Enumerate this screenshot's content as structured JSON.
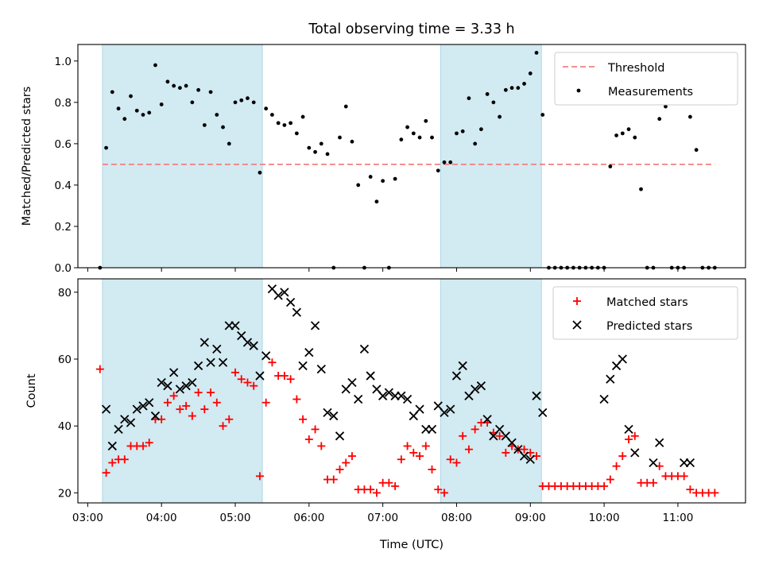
{
  "chart_data": [
    {
      "type": "scatter",
      "title": "Total observing time = 3.33 h",
      "xlabel": "",
      "ylabel": "Matched/Predicted stars",
      "ylim": [
        0,
        1.08
      ],
      "yticks": [
        0.0,
        0.2,
        0.4,
        0.6,
        0.8,
        1.0
      ],
      "ytick_labels": [
        "0.0",
        "0.2",
        "0.4",
        "0.6",
        "0.8",
        "1.0"
      ],
      "threshold": {
        "label": "Threshold",
        "value": 0.5,
        "x_range": [
          "03:12",
          "11:30"
        ],
        "color": "#f28080"
      },
      "legend_position": "top-right",
      "series": [
        {
          "name": "Measurements",
          "color": "#000000",
          "x": [
            "03:10",
            "03:15",
            "03:20",
            "03:25",
            "03:30",
            "03:35",
            "03:40",
            "03:45",
            "03:50",
            "03:55",
            "04:00",
            "04:05",
            "04:10",
            "04:15",
            "04:20",
            "04:25",
            "04:30",
            "04:35",
            "04:40",
            "04:45",
            "04:50",
            "04:55",
            "05:00",
            "05:05",
            "05:10",
            "05:15",
            "05:20",
            "05:25",
            "05:30",
            "05:35",
            "05:40",
            "05:45",
            "05:50",
            "05:55",
            "06:00",
            "06:05",
            "06:10",
            "06:15",
            "06:20",
            "06:25",
            "06:30",
            "06:35",
            "06:40",
            "06:45",
            "06:50",
            "06:55",
            "07:00",
            "07:05",
            "07:10",
            "07:15",
            "07:20",
            "07:25",
            "07:30",
            "07:35",
            "07:40",
            "07:45",
            "07:50",
            "07:55",
            "08:00",
            "08:05",
            "08:10",
            "08:15",
            "08:20",
            "08:25",
            "08:30",
            "08:35",
            "08:40",
            "08:45",
            "08:50",
            "08:55",
            "09:00",
            "09:05",
            "09:10",
            "09:15",
            "09:20",
            "09:25",
            "09:30",
            "09:35",
            "09:40",
            "09:45",
            "09:50",
            "09:55",
            "10:00",
            "10:05",
            "10:10",
            "10:15",
            "10:20",
            "10:25",
            "10:30",
            "10:35",
            "10:40",
            "10:45",
            "10:50",
            "10:55",
            "11:00",
            "11:05",
            "11:10",
            "11:15",
            "11:20",
            "11:25",
            "11:30"
          ],
          "y": [
            0.0,
            0.58,
            0.85,
            0.77,
            0.72,
            0.83,
            0.76,
            0.74,
            0.75,
            0.98,
            0.79,
            0.9,
            0.88,
            0.87,
            0.88,
            0.8,
            0.86,
            0.69,
            0.85,
            0.74,
            0.68,
            0.6,
            0.8,
            0.81,
            0.82,
            0.8,
            0.46,
            0.77,
            0.74,
            0.7,
            0.69,
            0.7,
            0.65,
            0.73,
            0.58,
            0.56,
            0.6,
            0.55,
            0.0,
            0.63,
            0.78,
            0.61,
            0.4,
            0.0,
            0.44,
            0.32,
            0.42,
            0.0,
            0.43,
            0.62,
            0.68,
            0.65,
            0.63,
            0.71,
            0.63,
            0.47,
            0.51,
            0.51,
            0.65,
            0.66,
            0.82,
            0.6,
            0.67,
            0.84,
            0.8,
            0.73,
            0.86,
            0.87,
            0.87,
            0.89,
            0.94,
            1.04,
            0.74,
            0.0,
            0.0,
            0.0,
            0.0,
            0.0,
            0.0,
            0.0,
            0.0,
            0.0,
            0.0,
            0.49,
            0.64,
            0.65,
            0.67,
            0.63,
            0.38,
            0.0,
            0.0,
            0.72,
            0.78,
            0.0,
            0.0,
            0.0,
            0.73,
            0.57,
            0.0,
            0.0,
            0.0
          ]
        }
      ],
      "shaded_intervals": [
        [
          "03:12",
          "05:22"
        ],
        [
          "07:47",
          "09:09"
        ]
      ],
      "shade_color": "#add8e6"
    },
    {
      "type": "scatter",
      "title": "",
      "xlabel": "Time (UTC)",
      "ylabel": "Count",
      "ylim": [
        17,
        84
      ],
      "yticks": [
        20,
        40,
        60,
        80
      ],
      "ytick_labels": [
        "20",
        "40",
        "60",
        "80"
      ],
      "xlim": [
        "02:52",
        "11:55"
      ],
      "xticks": [
        "03:00",
        "04:00",
        "05:00",
        "06:00",
        "07:00",
        "08:00",
        "09:00",
        "10:00",
        "11:00"
      ],
      "legend_position": "top-right",
      "series": [
        {
          "name": "Matched stars",
          "color": "#ff0000",
          "marker": "plus",
          "x": [
            "03:10",
            "03:15",
            "03:20",
            "03:25",
            "03:30",
            "03:35",
            "03:40",
            "03:45",
            "03:50",
            "03:55",
            "04:00",
            "04:05",
            "04:10",
            "04:15",
            "04:20",
            "04:25",
            "04:30",
            "04:35",
            "04:40",
            "04:45",
            "04:50",
            "04:55",
            "05:00",
            "05:05",
            "05:10",
            "05:15",
            "05:20",
            "05:25",
            "05:30",
            "05:35",
            "05:40",
            "05:45",
            "05:50",
            "05:55",
            "06:00",
            "06:05",
            "06:10",
            "06:15",
            "06:20",
            "06:25",
            "06:30",
            "06:35",
            "06:40",
            "06:45",
            "06:50",
            "06:55",
            "07:00",
            "07:05",
            "07:10",
            "07:15",
            "07:20",
            "07:25",
            "07:30",
            "07:35",
            "07:40",
            "07:45",
            "07:50",
            "07:55",
            "08:00",
            "08:05",
            "08:10",
            "08:15",
            "08:20",
            "08:25",
            "08:30",
            "08:35",
            "08:40",
            "08:45",
            "08:50",
            "08:55",
            "09:00",
            "09:05",
            "09:10",
            "09:15",
            "09:20",
            "09:25",
            "09:30",
            "09:35",
            "09:40",
            "09:45",
            "09:50",
            "09:55",
            "10:00",
            "10:05",
            "10:10",
            "10:15",
            "10:20",
            "10:25",
            "10:30",
            "10:35",
            "10:40",
            "10:45",
            "10:50",
            "10:55",
            "11:00",
            "11:05",
            "11:10",
            "11:15",
            "11:20",
            "11:25",
            "11:30"
          ],
          "y": [
            57,
            26,
            29,
            30,
            30,
            34,
            34,
            34,
            35,
            42,
            42,
            47,
            49,
            45,
            46,
            43,
            50,
            45,
            50,
            47,
            40,
            42,
            56,
            54,
            53,
            52,
            25,
            47,
            59,
            55,
            55,
            54,
            48,
            42,
            36,
            39,
            34,
            24,
            24,
            27,
            29,
            31,
            21,
            21,
            21,
            20,
            23,
            23,
            22,
            30,
            34,
            32,
            31,
            34,
            27,
            21,
            20,
            30,
            29,
            37,
            33,
            39,
            41,
            41,
            38,
            37,
            32,
            34,
            33,
            33,
            32,
            31,
            22,
            22,
            22,
            22,
            22,
            22,
            22,
            22,
            22,
            22,
            22,
            24,
            28,
            31,
            36,
            37,
            23,
            23,
            23,
            28,
            25,
            25,
            25,
            25,
            21,
            20,
            20,
            20,
            20
          ]
        },
        {
          "name": "Predicted stars",
          "color": "#000000",
          "marker": "x",
          "x": [
            "03:15",
            "03:20",
            "03:25",
            "03:30",
            "03:35",
            "03:40",
            "03:45",
            "03:50",
            "03:55",
            "04:00",
            "04:05",
            "04:10",
            "04:15",
            "04:20",
            "04:25",
            "04:30",
            "04:35",
            "04:40",
            "04:45",
            "04:50",
            "04:55",
            "05:00",
            "05:05",
            "05:10",
            "05:15",
            "05:20",
            "05:25",
            "05:30",
            "05:35",
            "05:40",
            "05:45",
            "05:50",
            "05:55",
            "06:00",
            "06:05",
            "06:10",
            "06:15",
            "06:20",
            "06:25",
            "06:30",
            "06:35",
            "06:40",
            "06:45",
            "06:50",
            "06:55",
            "07:00",
            "07:05",
            "07:10",
            "07:15",
            "07:20",
            "07:25",
            "07:30",
            "07:35",
            "07:40",
            "07:45",
            "07:50",
            "07:55",
            "08:00",
            "08:05",
            "08:10",
            "08:15",
            "08:20",
            "08:25",
            "08:30",
            "08:35",
            "08:40",
            "08:45",
            "08:50",
            "08:55",
            "09:00",
            "09:05",
            "09:10",
            "10:00",
            "10:05",
            "10:10",
            "10:15",
            "10:20",
            "10:25",
            "10:40",
            "10:45",
            "11:05",
            "11:10"
          ],
          "y": [
            45,
            34,
            39,
            42,
            41,
            45,
            46,
            47,
            43,
            53,
            52,
            56,
            51,
            52,
            53,
            58,
            65,
            59,
            63,
            59,
            70,
            70,
            67,
            65,
            64,
            55,
            61,
            81,
            79,
            80,
            77,
            74,
            58,
            62,
            70,
            57,
            44,
            43,
            37,
            51,
            53,
            48,
            63,
            55,
            51,
            49,
            50,
            49,
            49,
            48,
            43,
            45,
            39,
            39,
            46,
            44,
            45,
            55,
            58,
            49,
            51,
            52,
            42,
            37,
            39,
            37,
            35,
            33,
            31,
            30,
            49,
            44,
            48,
            54,
            58,
            60,
            39,
            32,
            29,
            35,
            29,
            29
          ]
        }
      ],
      "shaded_intervals": [
        [
          "03:12",
          "05:22"
        ],
        [
          "07:47",
          "09:09"
        ]
      ],
      "shade_color": "#add8e6"
    }
  ]
}
